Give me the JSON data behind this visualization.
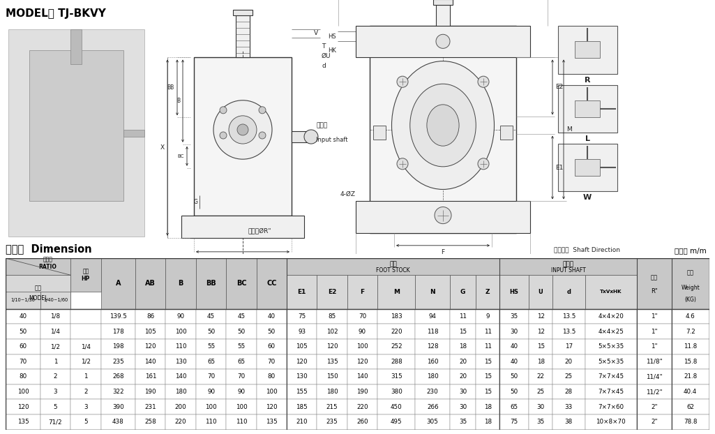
{
  "title_model": "MODEL： TJ-BKVY",
  "section_title": "尺寸表  Dimension",
  "unit_label": "單位： m/m",
  "rows": [
    [
      "40",
      "1/8",
      "",
      "139.5",
      "86",
      "90",
      "45",
      "45",
      "40",
      "75",
      "85",
      "70",
      "183",
      "94",
      "11",
      "9",
      "35",
      "12",
      "13.5",
      "4×4×20",
      "1\"",
      "4.6"
    ],
    [
      "50",
      "1/4",
      "",
      "178",
      "105",
      "100",
      "50",
      "50",
      "50",
      "93",
      "102",
      "90",
      "220",
      "118",
      "15",
      "11",
      "30",
      "12",
      "13.5",
      "4×4×25",
      "1\"",
      "7.2"
    ],
    [
      "60",
      "1/2",
      "1/4",
      "198",
      "120",
      "110",
      "55",
      "55",
      "60",
      "105",
      "120",
      "100",
      "252",
      "128",
      "18",
      "11",
      "40",
      "15",
      "17",
      "5×5×35",
      "1\"",
      "11.8"
    ],
    [
      "70",
      "1",
      "1/2",
      "235",
      "140",
      "130",
      "65",
      "65",
      "70",
      "120",
      "135",
      "120",
      "288",
      "160",
      "20",
      "15",
      "40",
      "18",
      "20",
      "5×5×35",
      "11/8\"",
      "15.8"
    ],
    [
      "80",
      "2",
      "1",
      "268",
      "161",
      "140",
      "70",
      "70",
      "80",
      "130",
      "150",
      "140",
      "315",
      "180",
      "20",
      "15",
      "50",
      "22",
      "25",
      "7×7×45",
      "11/4\"",
      "21.8"
    ],
    [
      "100",
      "3",
      "2",
      "322",
      "190",
      "180",
      "90",
      "90",
      "100",
      "155",
      "180",
      "190",
      "380",
      "230",
      "30",
      "15",
      "50",
      "25",
      "28",
      "7×7×45",
      "11/2\"",
      "40.4"
    ],
    [
      "120",
      "5",
      "3",
      "390",
      "231",
      "200",
      "100",
      "100",
      "120",
      "185",
      "215",
      "220",
      "450",
      "266",
      "30",
      "18",
      "65",
      "30",
      "33",
      "7×7×60",
      "2\"",
      "62"
    ],
    [
      "135",
      "71/2",
      "5",
      "438",
      "258",
      "220",
      "110",
      "110",
      "135",
      "210",
      "235",
      "260",
      "495",
      "305",
      "35",
      "18",
      "75",
      "35",
      "38",
      "10×8×70",
      "2\"",
      "78.8"
    ]
  ],
  "col_widths_rel": [
    3.2,
    2.8,
    2.8,
    3.2,
    2.8,
    2.8,
    2.8,
    2.8,
    2.8,
    2.8,
    2.8,
    2.8,
    3.5,
    3.2,
    2.4,
    2.2,
    2.7,
    2.2,
    3.0,
    4.8,
    3.2,
    3.5
  ],
  "hdr_bg": "#c8c8c8",
  "hdr_bg2": "#d8d8d8",
  "row_bg1": "#ffffff",
  "row_bg2": "#ffffff"
}
